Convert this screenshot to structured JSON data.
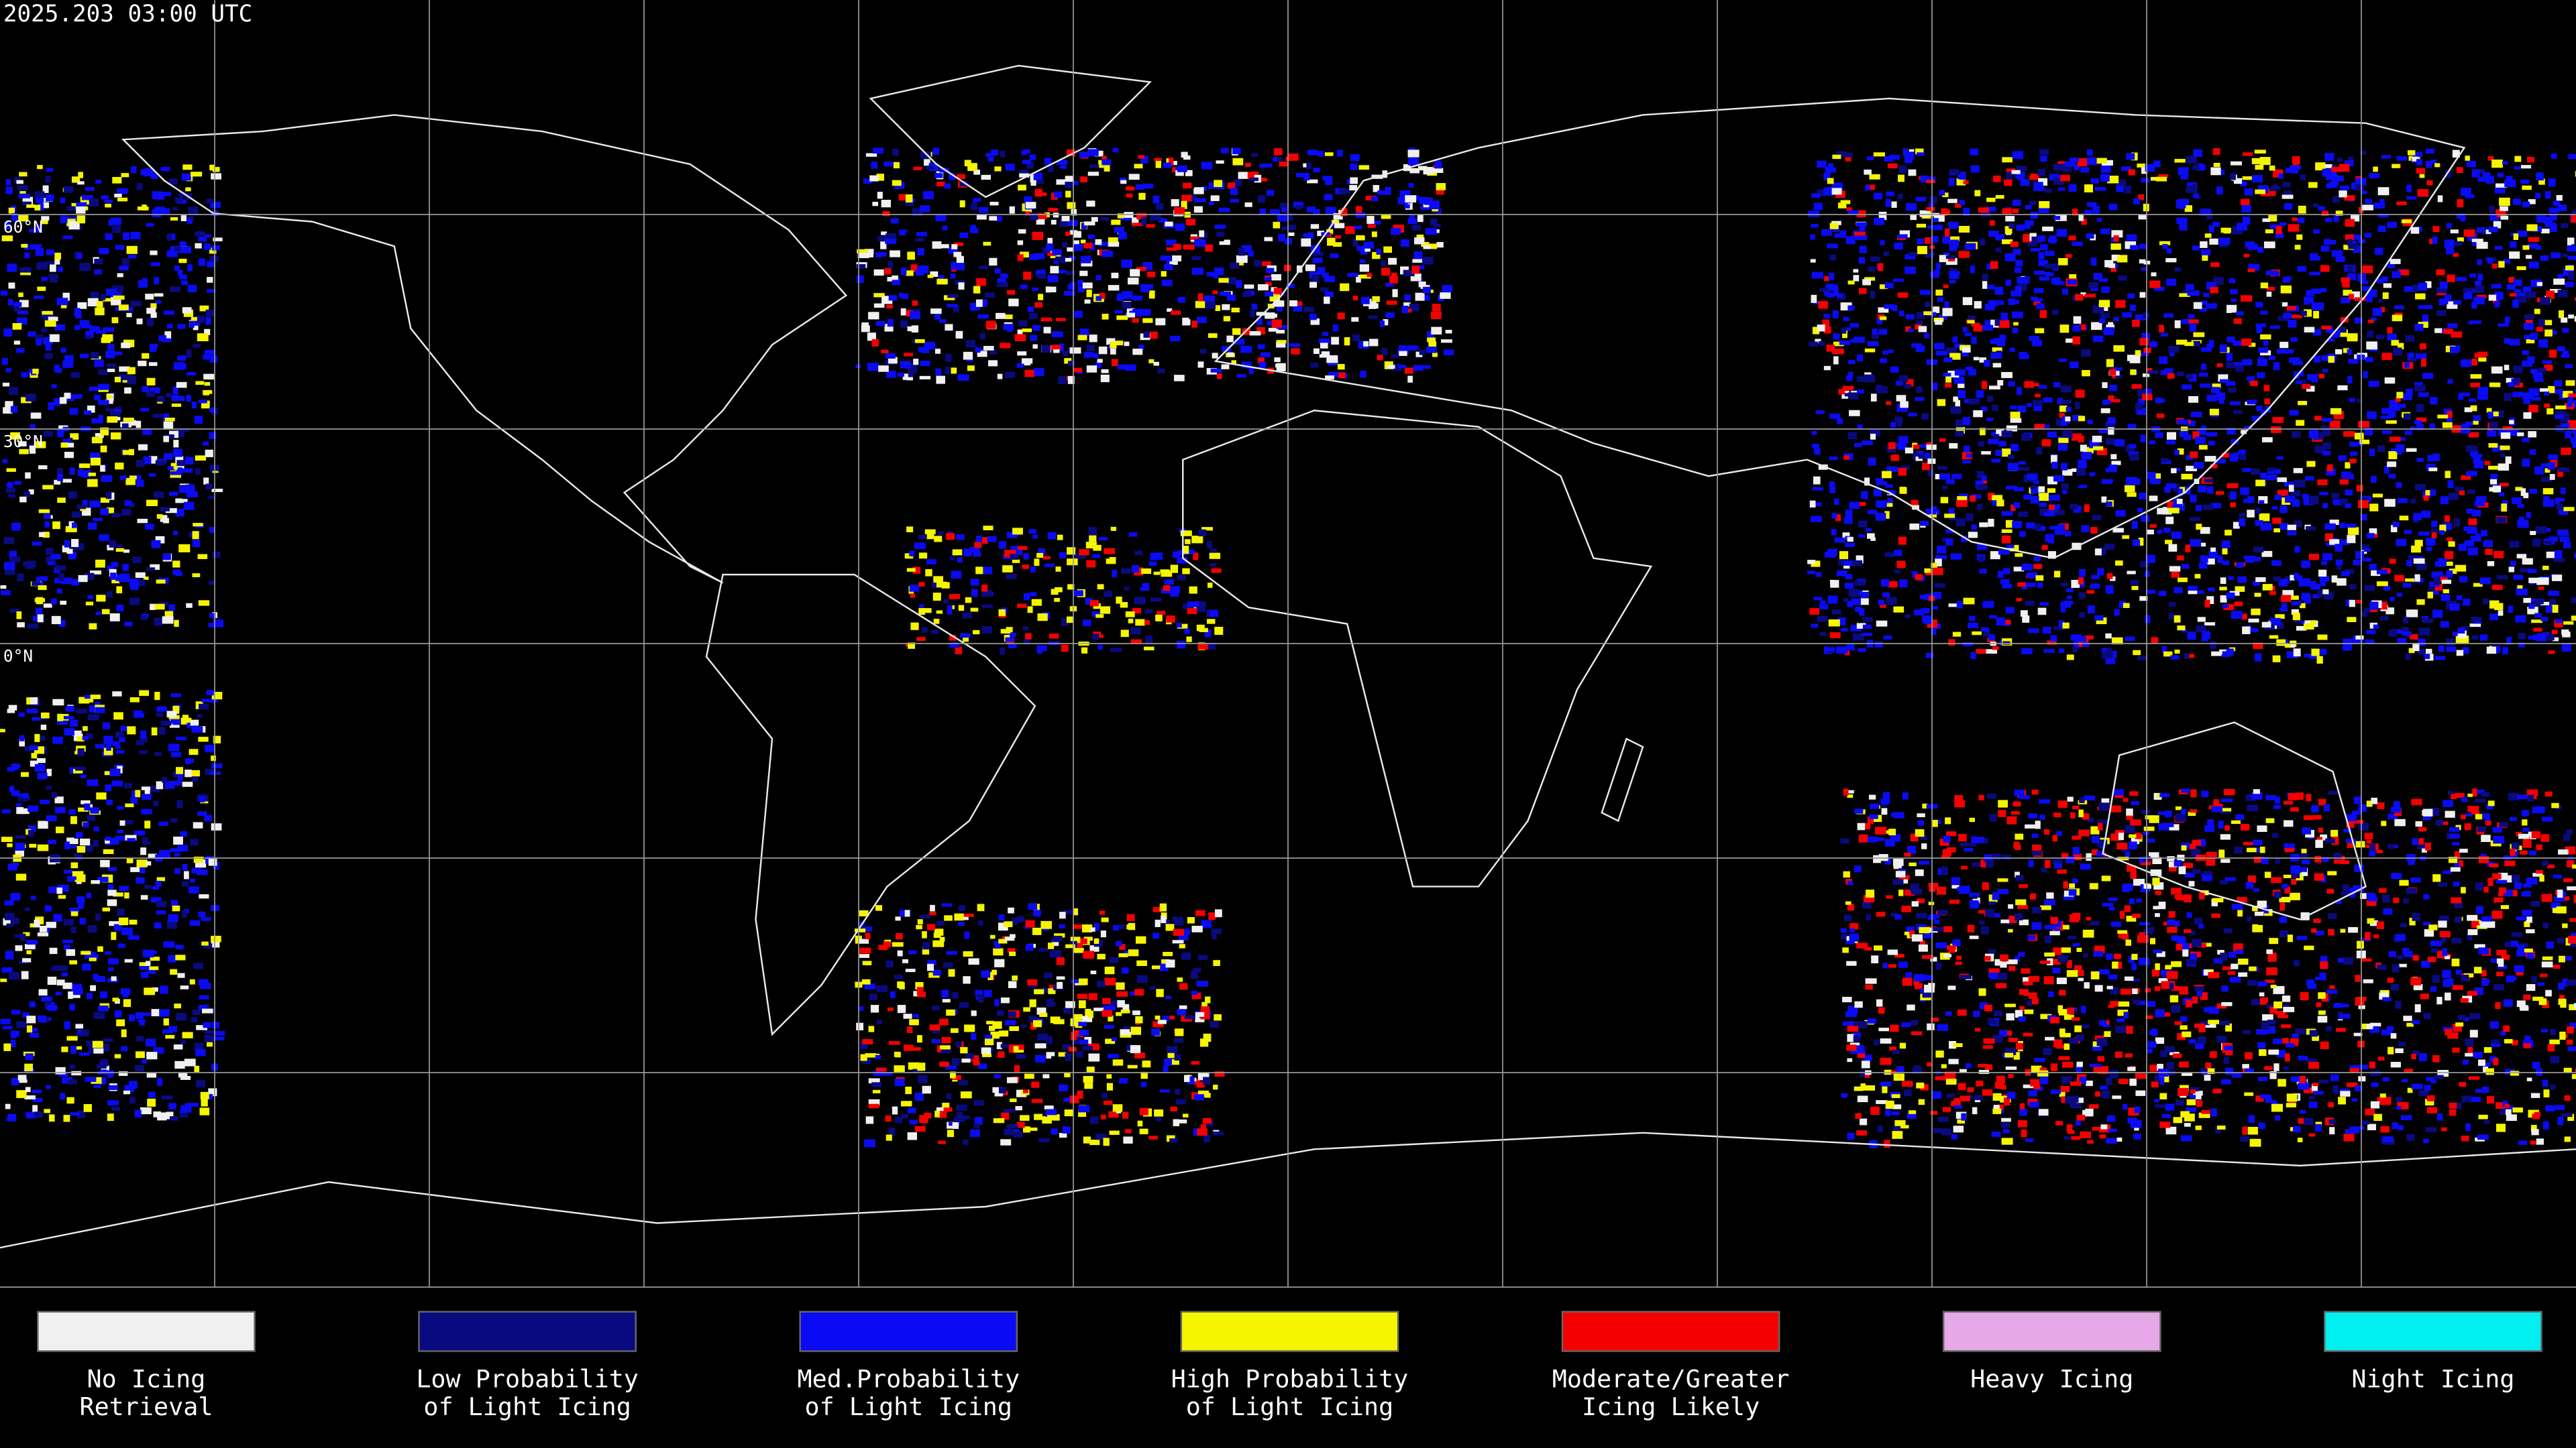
{
  "header": {
    "title": "2025.203 03:00 UTC"
  },
  "map": {
    "lat_labels": [
      "60°N",
      "30°N",
      "0°N"
    ]
  },
  "legend": {
    "items": [
      {
        "label": [
          "No Icing",
          "Retrieval"
        ],
        "color": "#f0f0f0"
      },
      {
        "label": [
          "Low Probability",
          "of Light Icing"
        ],
        "color": "#0a0a80"
      },
      {
        "label": [
          "Med.Probability",
          "of Light Icing"
        ],
        "color": "#0a0af5"
      },
      {
        "label": [
          "High Probability",
          "of Light Icing"
        ],
        "color": "#f5f500"
      },
      {
        "label": [
          "Moderate/Greater",
          "Icing Likely"
        ],
        "color": "#f50000"
      },
      {
        "label": [
          "Heavy Icing"
        ],
        "color": "#e6a8e6"
      },
      {
        "label": [
          "Night Icing"
        ],
        "color": "#00f0f0"
      }
    ]
  }
}
